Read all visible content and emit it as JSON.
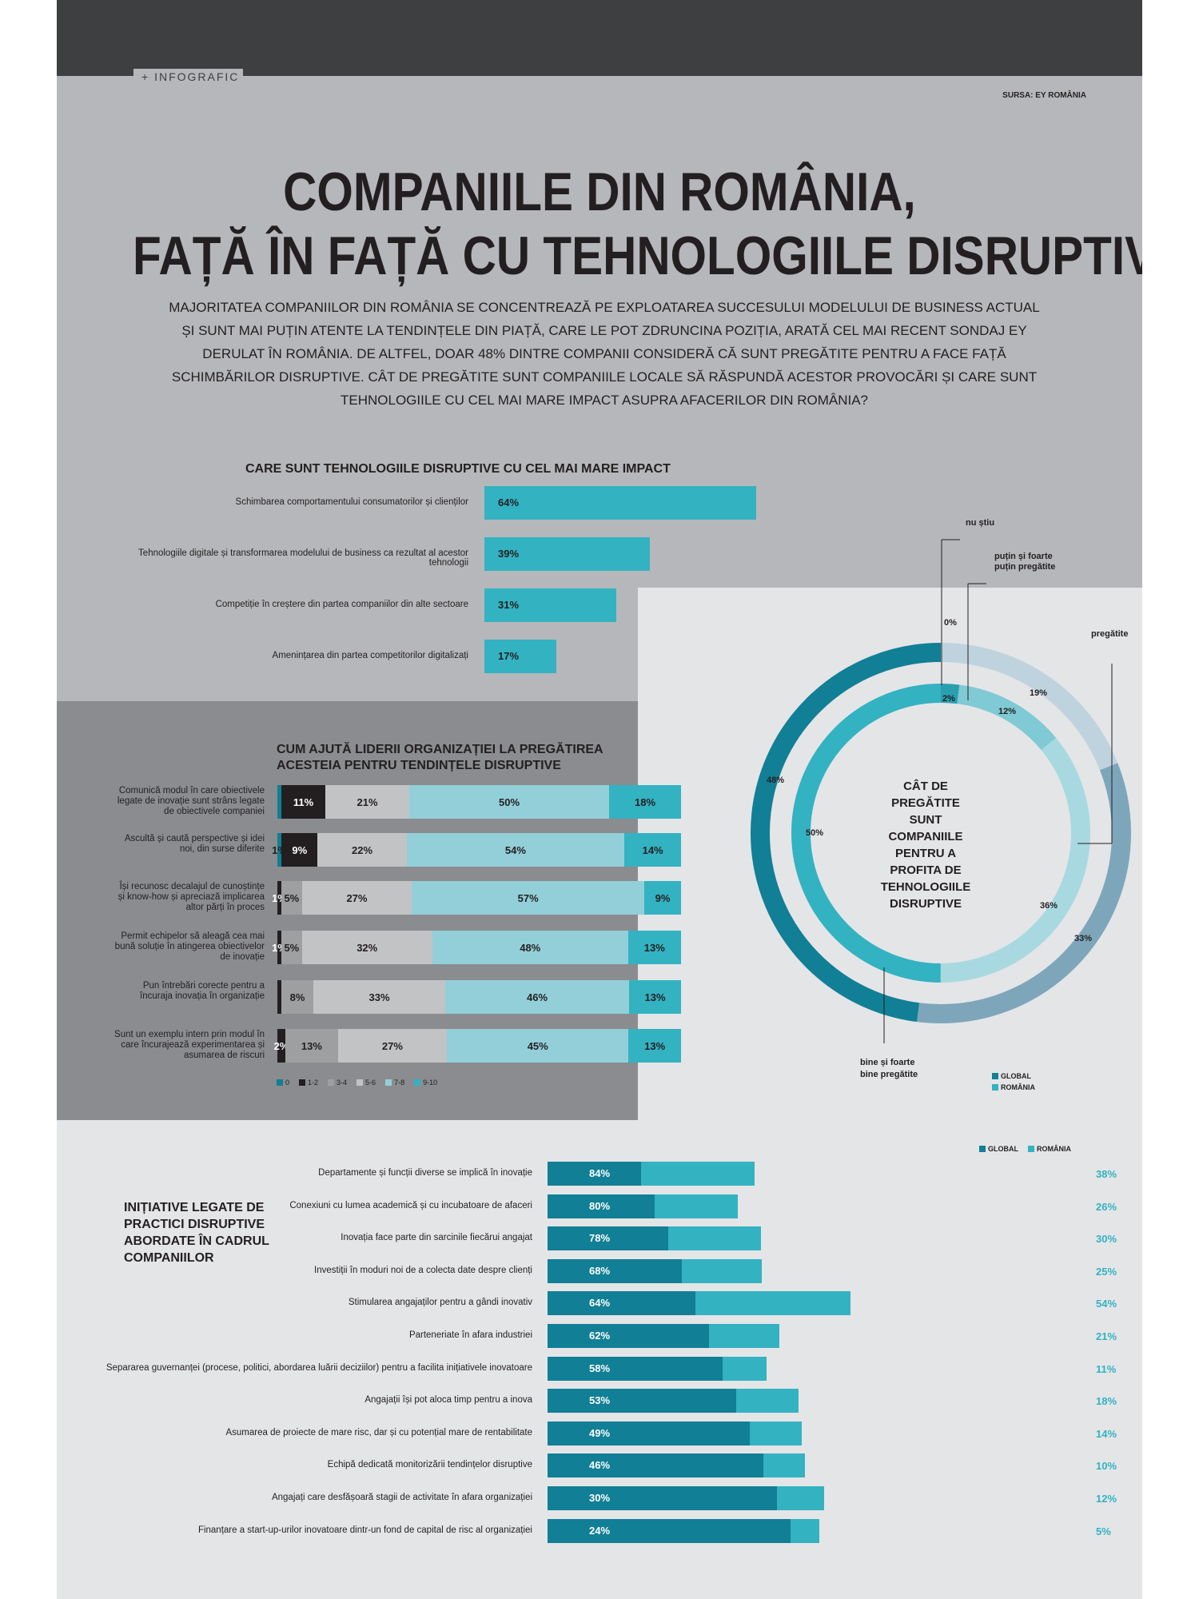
{
  "header": {
    "tag": "+ INFOGRAFIC",
    "source": "SURSA: EY ROMÂNIA",
    "title_line1": "COMPANIILE DIN ROMÂNIA,",
    "title_line2": "FAȚĂ ÎN FAȚĂ CU TEHNOLOGIILE DISRUPTIVE",
    "lead": "Majoritatea companiilor din România se concentrează pe exploatarea succesului modelului de business actual și sunt mai puțin atente la tendințele din piață, care le pot zdruncina poziția, arată cel mai recent sondaj EY derulat în România. De altfel, doar 48% dintre companii consideră că sunt pregătite pentru a face față schimbărilor disruptive. Cât de pregătite sunt companiile locale să răspundă acestor provocări și care sunt tehnologiile cu cel mai mare impact asupra afacerilor din România?"
  },
  "colors": {
    "teal_dark": "#117f95",
    "teal": "#33b2c1",
    "teal_light": "#93cfd9",
    "gray_mid": "#9d9fa1",
    "gray_light": "#c2c3c5",
    "black": "#231f20",
    "steel": "#7ea6bb",
    "steel_light": "#bfd3de"
  },
  "chart_data": [
    {
      "type": "bar",
      "title": "CARE SUNT TEHNOLOGIILE DISRUPTIVE CU CEL MAI MARE IMPACT",
      "categories": [
        "Schimbarea comportamentului consumatorilor și clienților",
        "Tehnologiile digitale și transformarea modelului de business ca rezultat al acestor tehnologii",
        "Competiție în creștere din partea companiilor din alte sectoare",
        "Amenințarea din partea competitorilor digitalizați"
      ],
      "values": [
        64,
        39,
        31,
        17
      ],
      "labels": [
        "64%",
        "39%",
        "31%",
        "17%"
      ]
    },
    {
      "type": "bar",
      "title_line1": "CUM AJUTĂ LIDERII ORGANIZAȚIEI LA PREGĂTIREA",
      "title_line2": "ACESTEIA PENTRU TENDINȚELE DISRUPTIVE",
      "series_names": [
        "0",
        "1-2",
        "3-4",
        "5-6",
        "7-8",
        "9-10"
      ],
      "rows": [
        {
          "label": "Comunică modul în care obiectivele legate de inovație sunt strâns legate de obiectivele companiei",
          "values": [
            1,
            11,
            0,
            21,
            50,
            18
          ],
          "labels": [
            "",
            "11%",
            "",
            "21%",
            "50%",
            "18%"
          ]
        },
        {
          "label": "Ascultă și caută perspective și idei noi, din surse diferite",
          "values": [
            1,
            9,
            0,
            22,
            54,
            14
          ],
          "labels": [
            "1%",
            "9%",
            "",
            "22%",
            "54%",
            "14%"
          ]
        },
        {
          "label": "Își recunosc decalajul de cunoștințe și know-how și apreciază implicarea altor părți în proces",
          "values": [
            0,
            1,
            5,
            27,
            57,
            9
          ],
          "labels": [
            "",
            "1%",
            "5%",
            "27%",
            "57%",
            "9%"
          ]
        },
        {
          "label": "Permit echipelor să aleagă cea mai bună soluție în atingerea obiectivelor de inovație",
          "values": [
            0,
            1,
            5,
            32,
            48,
            13
          ],
          "labels": [
            "",
            "1%",
            "5%",
            "32%",
            "48%",
            "13%"
          ]
        },
        {
          "label": "Pun întrebări corecte pentru a încuraja inovația în organizație",
          "values": [
            0,
            1,
            8,
            33,
            46,
            13
          ],
          "labels": [
            "",
            "",
            "8%",
            "33%",
            "46%",
            "13%"
          ]
        },
        {
          "label": "Sunt un exemplu intern prin modul în care încurajează experimentarea și asumarea de riscuri",
          "values": [
            0,
            2,
            13,
            27,
            45,
            13
          ],
          "labels": [
            "",
            "2%",
            "13%",
            "27%",
            "45%",
            "13%"
          ]
        }
      ]
    },
    {
      "type": "pie",
      "title": "CÂT DE PREGĂTITE SUNT COMPANIILE PENTRU A PROFITA DE TEHNOLOGIILE DISRUPTIVE",
      "categories": [
        "nu știu",
        "puțin și foarte puțin pregătite",
        "pregătite",
        "bine și foarte bine pregătite"
      ],
      "series": [
        {
          "name": "GLOBAL",
          "values": [
            0,
            19,
            33,
            48
          ],
          "labels": [
            "0%",
            "19%",
            "33%",
            "48%"
          ]
        },
        {
          "name": "ROMÂNIA",
          "values": [
            2,
            12,
            36,
            50
          ],
          "labels": [
            "2%",
            "12%",
            "36%",
            "50%"
          ]
        }
      ]
    },
    {
      "type": "bar",
      "title": "INIȚIATIVE LEGATE DE PRACTICI DISRUPTIVE ABORDATE ÎN CADRUL COMPANIILOR",
      "categories": [
        "Departamente și funcții diverse se implică în inovație",
        "Conexiuni cu lumea academică și cu incubatoare de afaceri",
        "Inovația face parte din sarcinile fiecărui angajat",
        "Investiții în moduri noi de a colecta date despre clienți",
        "Stimularea angajaților pentru a gândi inovativ",
        "Parteneriate în afara industriei",
        "Separarea guvernanței (procese, politici, abordarea luării deciziilor) pentru a facilita inițiativele inovatoare",
        "Angajații își pot aloca timp pentru a inova",
        "Asumarea de proiecte de mare risc, dar și cu potențial mare de rentabilitate",
        "Echipă dedicată monitorizării tendințelor disruptive",
        "Angajați care desfășoară stagii de activitate în afara organizației",
        "Finanțare a start-up-urilor inovatoare dintr-un fond de capital de risc al organizației"
      ],
      "series": [
        {
          "name": "GLOBAL",
          "values": [
            84,
            80,
            78,
            68,
            64,
            62,
            58,
            53,
            49,
            46,
            30,
            24
          ],
          "labels": [
            "84%",
            "80%",
            "78%",
            "68%",
            "64%",
            "62%",
            "58%",
            "53%",
            "49%",
            "46%",
            "30%",
            "24%"
          ]
        },
        {
          "name": "ROMÂNIA",
          "values": [
            38,
            26,
            30,
            25,
            54,
            21,
            11,
            18,
            14,
            10,
            12,
            5
          ],
          "labels": [
            "38%",
            "26%",
            "30%",
            "25%",
            "54%",
            "21%",
            "11%",
            "18%",
            "14%",
            "10%",
            "12%",
            "5%"
          ]
        }
      ]
    }
  ]
}
